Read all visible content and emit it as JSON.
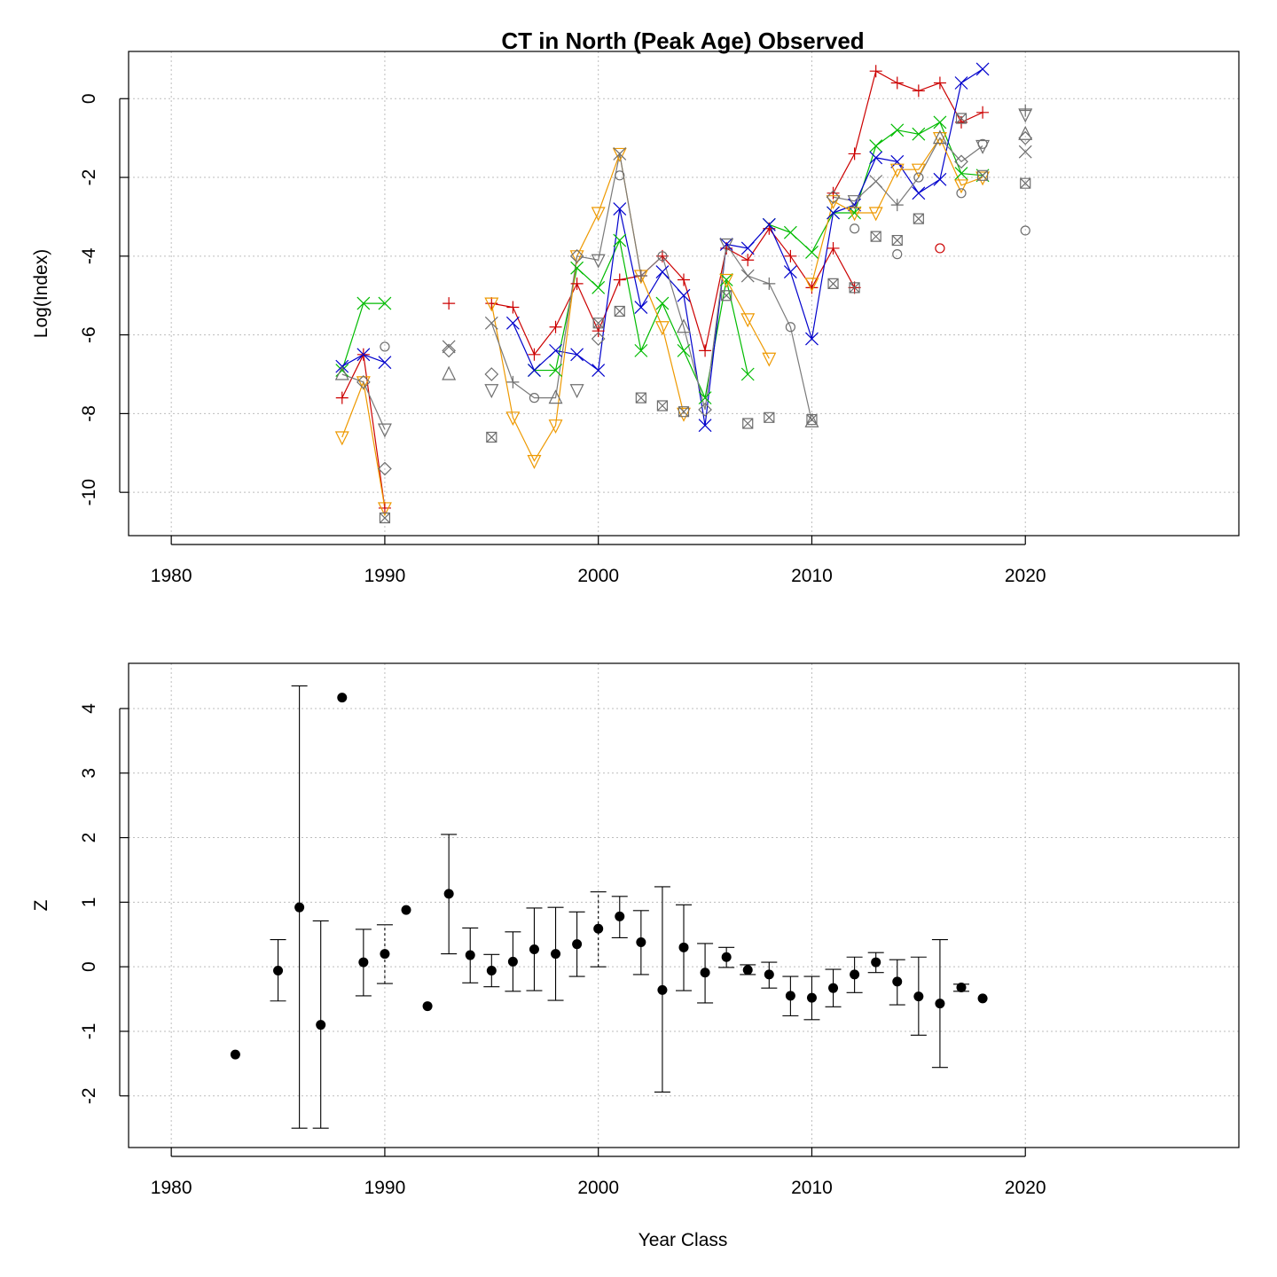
{
  "chart_data": [
    {
      "type": "line",
      "title": "CT in North (Peak Age) Observed",
      "xlabel": "",
      "ylabel": "Log(Index)",
      "xlim": [
        1978,
        2030
      ],
      "ylim": [
        -11.1,
        1.2
      ],
      "x_ticks": [
        1980,
        1990,
        2000,
        2010,
        2020
      ],
      "y_ticks": [
        0,
        -2,
        -4,
        -6,
        -8,
        -10
      ],
      "grid": true,
      "series": [
        {
          "color": "#cc0000",
          "marker": "plus",
          "points": [
            [
              1988,
              -7.6
            ],
            [
              1989,
              -6.5
            ],
            [
              1990,
              -10.4
            ],
            null,
            [
              1993,
              -5.2
            ],
            null,
            [
              1995,
              -5.2
            ],
            [
              1996,
              -5.3
            ],
            [
              1997,
              -6.5
            ],
            [
              1998,
              -5.8
            ],
            [
              1999,
              -4.7
            ],
            [
              2000,
              -5.9
            ],
            [
              2001,
              -4.6
            ],
            [
              2002,
              -4.5
            ],
            [
              2003,
              -4.0
            ],
            [
              2004,
              -4.6
            ],
            [
              2005,
              -6.4
            ],
            [
              2006,
              -3.8
            ],
            [
              2007,
              -4.1
            ],
            [
              2008,
              -3.3
            ],
            [
              2009,
              -4.0
            ],
            [
              2010,
              -4.8
            ],
            [
              2011,
              -3.8
            ],
            [
              2012,
              -4.8
            ],
            null,
            [
              2011,
              -2.4
            ],
            [
              2012,
              -1.4
            ],
            [
              2013,
              0.7
            ],
            [
              2014,
              0.4
            ],
            [
              2015,
              0.2
            ],
            [
              2016,
              0.4
            ],
            [
              2017,
              -0.6
            ],
            [
              2018,
              -0.35
            ]
          ]
        },
        {
          "color": "#00bb00",
          "marker": "x",
          "points": [
            [
              1988,
              -6.9
            ],
            [
              1989,
              -5.2
            ],
            [
              1990,
              -5.2
            ],
            null,
            [
              1997,
              -6.9
            ],
            [
              1998,
              -6.9
            ],
            [
              1999,
              -4.3
            ],
            [
              2000,
              -4.8
            ],
            [
              2001,
              -3.6
            ],
            [
              2002,
              -6.4
            ],
            [
              2003,
              -5.2
            ],
            [
              2004,
              -6.4
            ],
            [
              2005,
              -7.6
            ],
            [
              2006,
              -4.6
            ],
            [
              2007,
              -7.0
            ],
            null,
            [
              2008,
              -3.2
            ],
            [
              2009,
              -3.4
            ],
            [
              2010,
              -3.9
            ],
            [
              2011,
              -2.9
            ],
            [
              2012,
              -2.9
            ],
            [
              2013,
              -1.2
            ],
            [
              2014,
              -0.8
            ],
            [
              2015,
              -0.9
            ],
            [
              2016,
              -0.6
            ],
            [
              2017,
              -1.9
            ],
            [
              2018,
              -1.95
            ]
          ]
        },
        {
          "color": "#0000cc",
          "marker": "x",
          "points": [
            [
              1988,
              -6.8
            ],
            [
              1989,
              -6.5
            ],
            [
              1990,
              -6.7
            ],
            null,
            [
              1996,
              -5.7
            ],
            [
              1997,
              -6.9
            ],
            [
              1998,
              -6.4
            ],
            [
              1999,
              -6.5
            ],
            [
              2000,
              -6.9
            ],
            [
              2001,
              -2.8
            ],
            [
              2002,
              -5.3
            ],
            [
              2003,
              -4.4
            ],
            [
              2004,
              -5.0
            ],
            [
              2005,
              -8.3
            ],
            [
              2006,
              -3.7
            ],
            [
              2007,
              -3.8
            ],
            [
              2008,
              -3.2
            ],
            [
              2009,
              -4.4
            ],
            [
              2010,
              -6.1
            ],
            [
              2011,
              -2.9
            ],
            [
              2012,
              -2.7
            ],
            [
              2013,
              -1.5
            ],
            [
              2014,
              -1.6
            ],
            [
              2015,
              -2.4
            ],
            [
              2016,
              -2.05
            ],
            [
              2017,
              0.4
            ],
            [
              2018,
              0.75
            ]
          ]
        },
        {
          "color": "#ee9900",
          "marker": "triangle-down",
          "points": [
            [
              1988,
              -8.6
            ],
            [
              1989,
              -7.2
            ],
            [
              1990,
              -10.4
            ],
            null,
            [
              1995,
              -5.2
            ],
            [
              1996,
              -8.1
            ],
            [
              1997,
              -9.2
            ],
            [
              1998,
              -8.3
            ],
            [
              1999,
              -4.0
            ],
            [
              2000,
              -2.9
            ],
            [
              2001,
              -1.4
            ],
            [
              2002,
              -4.5
            ],
            [
              2003,
              -5.8
            ],
            [
              2004,
              -8.0
            ],
            null,
            [
              2006,
              -4.6
            ],
            [
              2007,
              -5.6
            ],
            [
              2008,
              -6.6
            ],
            null,
            [
              2010,
              -4.7
            ],
            [
              2011,
              -2.6
            ],
            [
              2012,
              -2.9
            ],
            [
              2013,
              -2.9
            ],
            [
              2014,
              -1.8
            ],
            [
              2015,
              -1.8
            ],
            [
              2016,
              -1.0
            ],
            [
              2017,
              -2.2
            ],
            [
              2018,
              -2.0
            ]
          ]
        },
        {
          "color": "#7a7a7a",
          "marker": "various",
          "points": [
            [
              1988,
              -7.0
            ],
            [
              1989,
              -7.2
            ],
            [
              1990,
              -8.4
            ],
            null,
            [
              1995,
              -5.7
            ],
            [
              1996,
              -7.2
            ],
            [
              1997,
              -7.6
            ],
            [
              1998,
              -7.6
            ],
            [
              1999,
              -4.0
            ],
            [
              2000,
              -4.1
            ],
            [
              2001,
              -1.4
            ],
            [
              2002,
              -4.5
            ],
            [
              2003,
              -4.0
            ],
            [
              2004,
              -5.8
            ],
            [
              2005,
              -7.9
            ],
            [
              2006,
              -3.7
            ],
            [
              2007,
              -4.5
            ],
            [
              2008,
              -4.7
            ],
            [
              2009,
              -5.8
            ],
            [
              2010,
              -8.2
            ],
            null,
            [
              2011,
              -2.5
            ],
            [
              2012,
              -2.6
            ],
            [
              2013,
              -2.1
            ],
            [
              2014,
              -2.7
            ],
            [
              2015,
              -2.0
            ],
            [
              2016,
              -1.0
            ],
            [
              2017,
              -1.6
            ],
            [
              2018,
              -1.2
            ]
          ]
        }
      ],
      "extra_points": [
        {
          "x": 1990,
          "y": -6.3,
          "marker": "circle"
        },
        {
          "x": 1990,
          "y": -9.4,
          "marker": "diamond"
        },
        {
          "x": 1990,
          "y": -10.65,
          "marker": "boxx"
        },
        {
          "x": 1993,
          "y": -6.3,
          "marker": "x"
        },
        {
          "x": 1993,
          "y": -6.4,
          "marker": "diamond"
        },
        {
          "x": 1993,
          "y": -7.0,
          "marker": "triangle"
        },
        {
          "x": 1995,
          "y": -7.0,
          "marker": "diamond"
        },
        {
          "x": 1995,
          "y": -7.4,
          "marker": "triangle-down"
        },
        {
          "x": 1995,
          "y": -8.6,
          "marker": "boxx"
        },
        {
          "x": 1999,
          "y": -7.4,
          "marker": "triangle-down"
        },
        {
          "x": 2000,
          "y": -6.1,
          "marker": "diamond"
        },
        {
          "x": 2000,
          "y": -5.7,
          "marker": "boxx"
        },
        {
          "x": 2001,
          "y": -5.4,
          "marker": "boxx"
        },
        {
          "x": 2001,
          "y": -1.95,
          "marker": "circle"
        },
        {
          "x": 2002,
          "y": -7.6,
          "marker": "boxx"
        },
        {
          "x": 2003,
          "y": -7.8,
          "marker": "boxx"
        },
        {
          "x": 2004,
          "y": -7.95,
          "marker": "boxx"
        },
        {
          "x": 2006,
          "y": -5.0,
          "marker": "boxx"
        },
        {
          "x": 2007,
          "y": -8.25,
          "marker": "boxx"
        },
        {
          "x": 2008,
          "y": -8.1,
          "marker": "boxx"
        },
        {
          "x": 2010,
          "y": -8.15,
          "marker": "boxx"
        },
        {
          "x": 2011,
          "y": -4.7,
          "marker": "boxx"
        },
        {
          "x": 2012,
          "y": -4.8,
          "marker": "boxx"
        },
        {
          "x": 2012,
          "y": -3.3,
          "marker": "circle"
        },
        {
          "x": 2013,
          "y": -3.5,
          "marker": "boxx"
        },
        {
          "x": 2014,
          "y": -3.6,
          "marker": "boxx"
        },
        {
          "x": 2014,
          "y": -3.95,
          "marker": "circle"
        },
        {
          "x": 2015,
          "y": -3.05,
          "marker": "boxx"
        },
        {
          "x": 2016,
          "y": -3.8,
          "marker": "circle"
        },
        {
          "x": 2017,
          "y": -0.5,
          "marker": "boxx"
        },
        {
          "x": 2017,
          "y": -2.4,
          "marker": "circle"
        },
        {
          "x": 2018,
          "y": -1.95,
          "marker": "boxx"
        },
        {
          "x": 2018,
          "y": -1.15,
          "marker": "circle"
        },
        {
          "x": 2020,
          "y": -0.3,
          "marker": "plus"
        },
        {
          "x": 2020,
          "y": -0.4,
          "marker": "triangle-down"
        },
        {
          "x": 2020,
          "y": -0.9,
          "marker": "triangle"
        },
        {
          "x": 2020,
          "y": -1.0,
          "marker": "diamond"
        },
        {
          "x": 2020,
          "y": -1.35,
          "marker": "x"
        },
        {
          "x": 2020,
          "y": -2.15,
          "marker": "boxx"
        },
        {
          "x": 2020,
          "y": -3.35,
          "marker": "circle"
        }
      ]
    },
    {
      "type": "scatter",
      "title": "",
      "xlabel": "Year Class",
      "ylabel": "Z",
      "xlim": [
        1978,
        2030
      ],
      "ylim": [
        -2.8,
        4.7
      ],
      "x_ticks": [
        1980,
        1990,
        2000,
        2010,
        2020
      ],
      "y_ticks": [
        4,
        3,
        2,
        1,
        0,
        -1,
        -2
      ],
      "grid": true,
      "points": [
        {
          "x": 1983,
          "y": -1.36
        },
        {
          "x": 1985,
          "y": -0.06,
          "lo": -0.53,
          "hi": 0.42
        },
        {
          "x": 1986,
          "y": 0.92,
          "lo": -2.5,
          "hi": 4.35
        },
        {
          "x": 1987,
          "y": -0.9,
          "lo": -2.5,
          "hi": 0.71
        },
        {
          "x": 1988,
          "y": 4.17
        },
        {
          "x": 1989,
          "y": 0.07,
          "lo": -0.45,
          "hi": 0.58
        },
        {
          "x": 1990,
          "y": 0.2,
          "lo": -0.26,
          "hi": 0.65,
          "dashed": true
        },
        {
          "x": 1991,
          "y": 0.88
        },
        {
          "x": 1992,
          "y": -0.61
        },
        {
          "x": 1993,
          "y": 1.13,
          "lo": 0.2,
          "hi": 2.05
        },
        {
          "x": 1994,
          "y": 0.18,
          "lo": -0.25,
          "hi": 0.6
        },
        {
          "x": 1995,
          "y": -0.06,
          "lo": -0.31,
          "hi": 0.19
        },
        {
          "x": 1996,
          "y": 0.08,
          "lo": -0.38,
          "hi": 0.54
        },
        {
          "x": 1997,
          "y": 0.27,
          "lo": -0.37,
          "hi": 0.91
        },
        {
          "x": 1998,
          "y": 0.2,
          "lo": -0.52,
          "hi": 0.92
        },
        {
          "x": 1999,
          "y": 0.35,
          "lo": -0.15,
          "hi": 0.85
        },
        {
          "x": 2000,
          "y": 0.59,
          "lo": 0.0,
          "hi": 1.16,
          "dashed": true
        },
        {
          "x": 2001,
          "y": 0.78,
          "lo": 0.45,
          "hi": 1.09
        },
        {
          "x": 2002,
          "y": 0.38,
          "lo": -0.12,
          "hi": 0.87
        },
        {
          "x": 2003,
          "y": -0.36,
          "lo": -1.94,
          "hi": 1.24
        },
        {
          "x": 2004,
          "y": 0.3,
          "lo": -0.37,
          "hi": 0.96
        },
        {
          "x": 2005,
          "y": -0.09,
          "lo": -0.56,
          "hi": 0.36
        },
        {
          "x": 2006,
          "y": 0.15,
          "lo": -0.01,
          "hi": 0.3
        },
        {
          "x": 2007,
          "y": -0.05,
          "lo": -0.12,
          "hi": 0.03
        },
        {
          "x": 2008,
          "y": -0.12,
          "lo": -0.33,
          "hi": 0.07
        },
        {
          "x": 2009,
          "y": -0.45,
          "lo": -0.76,
          "hi": -0.15
        },
        {
          "x": 2010,
          "y": -0.48,
          "lo": -0.82,
          "hi": -0.15
        },
        {
          "x": 2011,
          "y": -0.33,
          "lo": -0.62,
          "hi": -0.04
        },
        {
          "x": 2012,
          "y": -0.12,
          "lo": -0.4,
          "hi": 0.15
        },
        {
          "x": 2013,
          "y": 0.07,
          "lo": -0.09,
          "hi": 0.22
        },
        {
          "x": 2014,
          "y": -0.23,
          "lo": -0.59,
          "hi": 0.11
        },
        {
          "x": 2015,
          "y": -0.46,
          "lo": -1.06,
          "hi": 0.15
        },
        {
          "x": 2016,
          "y": -0.57,
          "lo": -1.56,
          "hi": 0.42
        },
        {
          "x": 2017,
          "y": -0.32,
          "lo": -0.38,
          "hi": -0.27
        },
        {
          "x": 2018,
          "y": -0.49
        }
      ]
    }
  ]
}
